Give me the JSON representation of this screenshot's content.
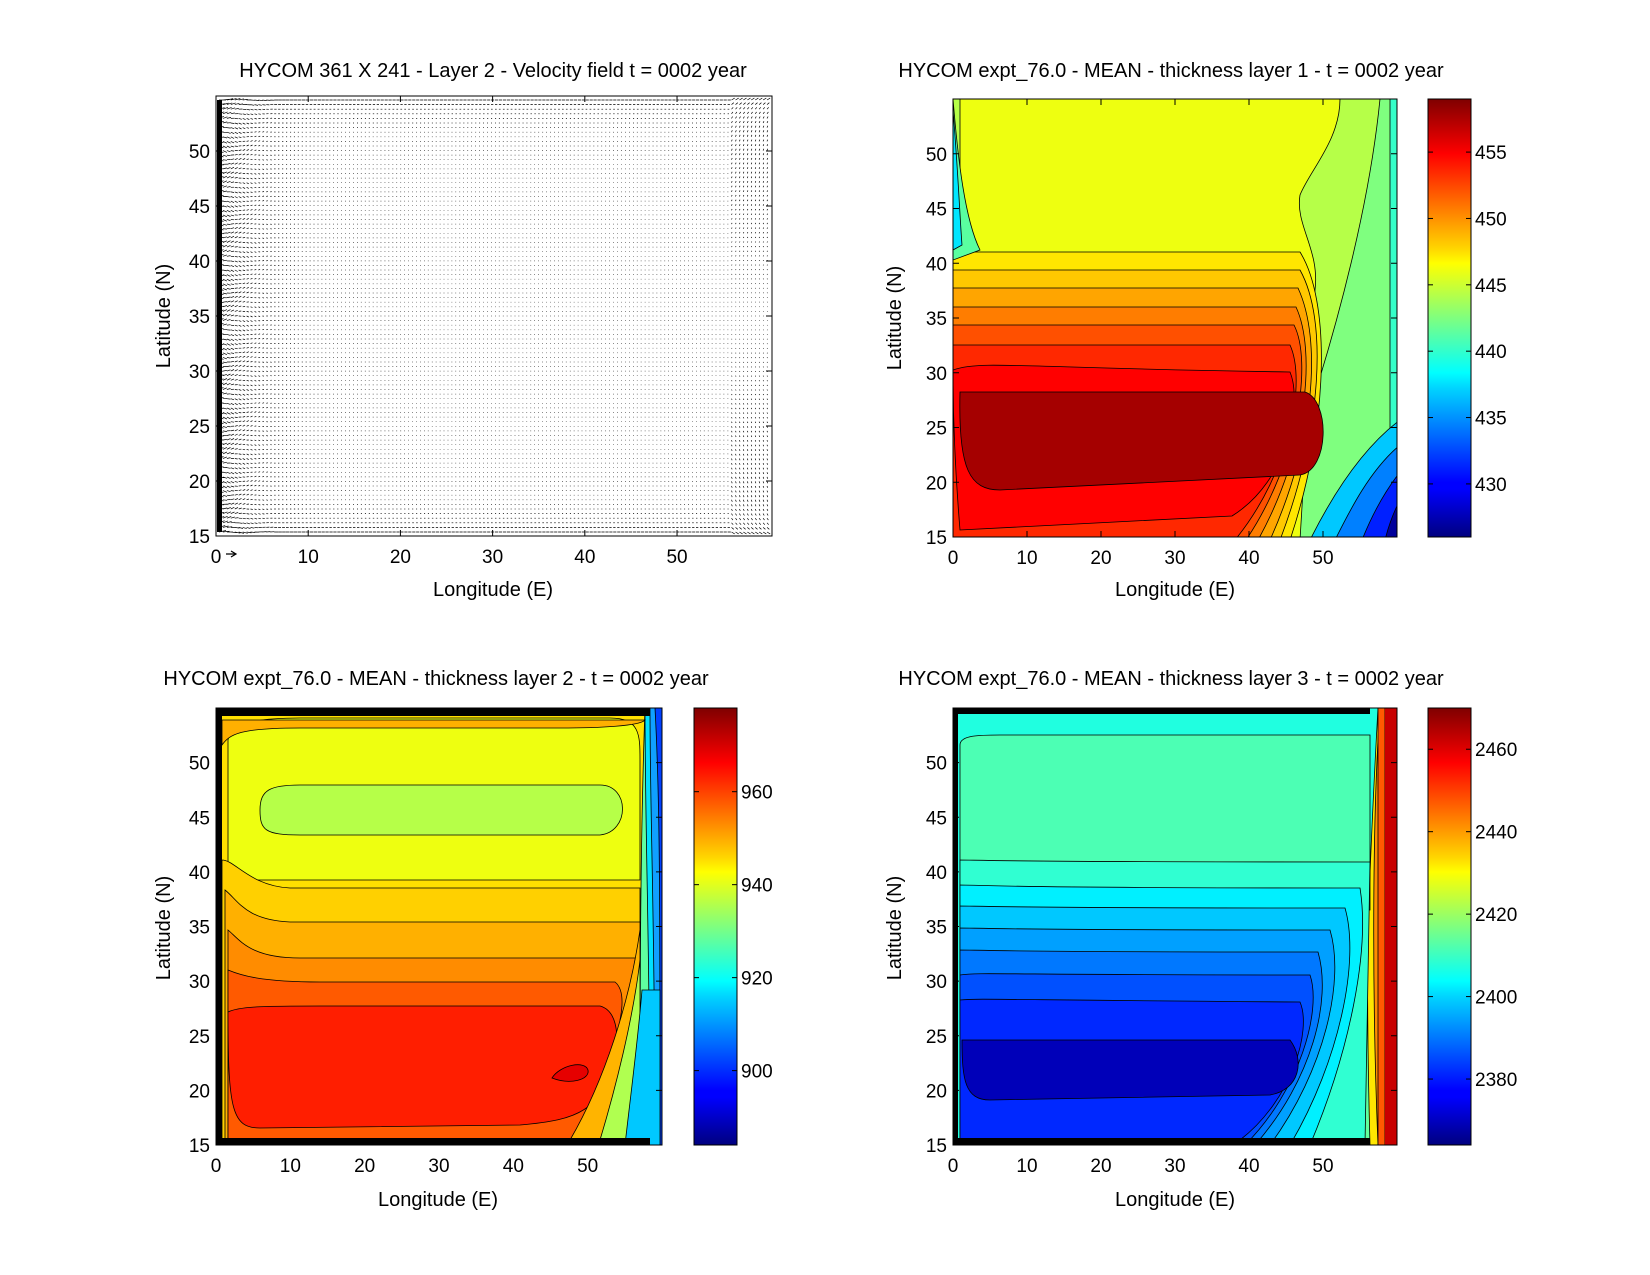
{
  "chart_data": [
    {
      "type": "vector-field",
      "title": "HYCOM 361 X 241 - Layer 2 - Velocity field  t = 0002 year",
      "xlabel": "Longitude (E)",
      "ylabel": "Latitude (N)",
      "xlim": [
        0,
        60
      ],
      "ylim": [
        15,
        55
      ],
      "xticks": [
        0,
        10,
        20,
        30,
        40,
        50
      ],
      "yticks": [
        15,
        20,
        25,
        30,
        35,
        40,
        45,
        50
      ],
      "grid": false
    },
    {
      "type": "contourf",
      "title": "HYCOM expt_76.0 - MEAN - thickness layer 1 - t = 0002 year",
      "xlabel": "Longitude (E)",
      "ylabel": "Latitude (N)",
      "xlim": [
        0,
        60
      ],
      "ylim": [
        15,
        55
      ],
      "xticks": [
        0,
        10,
        20,
        30,
        40,
        50
      ],
      "yticks": [
        15,
        20,
        25,
        30,
        35,
        40,
        45,
        50
      ],
      "clim": [
        426,
        459
      ],
      "colorbar_ticks": [
        430,
        435,
        440,
        445,
        450,
        455
      ],
      "colormap": "jet",
      "regions": [
        {
          "name": "northern gyre",
          "lat_range": [
            41,
            55
          ],
          "value": 445
        },
        {
          "name": "central band",
          "lat_range": [
            29,
            41
          ],
          "values": [
            446,
            448,
            450,
            452,
            454,
            456
          ]
        },
        {
          "name": "southern core",
          "lat_range": [
            20,
            28
          ],
          "value": 458
        },
        {
          "name": "southern edge",
          "lat_range": [
            15,
            20
          ],
          "value": 454
        },
        {
          "name": "eastern boundary",
          "lon_range": [
            50,
            60
          ],
          "values": [
            444,
            440,
            435,
            430
          ]
        }
      ]
    },
    {
      "type": "contourf",
      "title": "HYCOM expt_76.0 - MEAN - thickness layer 2 - t = 0002 year",
      "xlabel": "Longitude (E)",
      "ylabel": "Latitude (N)",
      "xlim": [
        0,
        60
      ],
      "ylim": [
        15,
        55
      ],
      "xticks": [
        0,
        10,
        20,
        30,
        40,
        50
      ],
      "yticks": [
        15,
        20,
        25,
        30,
        35,
        40,
        45,
        50
      ],
      "clim": [
        884,
        978
      ],
      "colorbar_ticks": [
        900,
        920,
        940,
        960
      ],
      "colormap": "jet",
      "regions": [
        {
          "name": "northern rim",
          "lat_range": [
            52,
            55
          ],
          "value": 950
        },
        {
          "name": "northern gyre",
          "lat_range": [
            43,
            52
          ],
          "value": 942
        },
        {
          "name": "gyre core",
          "lat_range": [
            43,
            47
          ],
          "value": 935
        },
        {
          "name": "central band",
          "lat_range": [
            29,
            43
          ],
          "values": [
            945,
            950,
            955,
            960
          ]
        },
        {
          "name": "southern core",
          "lat_range": [
            17,
            29
          ],
          "value": 968
        },
        {
          "name": "eastern boundary",
          "lon_range": [
            50,
            60
          ],
          "values": [
            940,
            920,
            900,
            890
          ]
        }
      ]
    },
    {
      "type": "contourf",
      "title": "HYCOM expt_76.0 - MEAN - thickness layer 3 - t = 0002 year",
      "xlabel": "Longitude (E)",
      "ylabel": "Latitude (N)",
      "xlim": [
        0,
        60
      ],
      "ylim": [
        15,
        55
      ],
      "xticks": [
        0,
        10,
        20,
        30,
        40,
        50
      ],
      "yticks": [
        15,
        20,
        25,
        30,
        35,
        40,
        45,
        50
      ],
      "clim": [
        2364,
        2470
      ],
      "colorbar_ticks": [
        2380,
        2400,
        2420,
        2440,
        2460
      ],
      "colormap": "jet",
      "regions": [
        {
          "name": "northern rim",
          "lat_range": [
            51,
            55
          ],
          "value": 2405
        },
        {
          "name": "northern gyre",
          "lat_range": [
            40,
            51
          ],
          "value": 2412
        },
        {
          "name": "central band",
          "lat_range": [
            28,
            40
          ],
          "values": [
            2405,
            2400,
            2395,
            2390,
            2385
          ]
        },
        {
          "name": "southern core",
          "lat_range": [
            21,
            28
          ],
          "value": 2370
        },
        {
          "name": "eastern boundary",
          "lon_range": [
            50,
            60
          ],
          "values": [
            2400,
            2430,
            2460
          ]
        }
      ]
    }
  ]
}
